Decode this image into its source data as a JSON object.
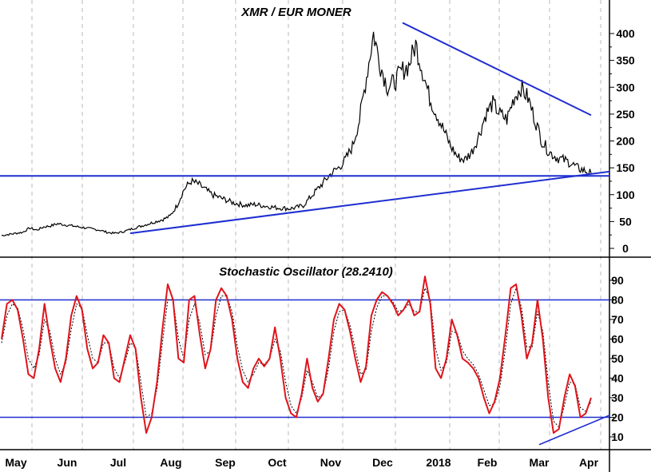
{
  "chart_data": [
    {
      "type": "line",
      "title": "XMR / EUR MONER",
      "yticks": [
        "0",
        "50",
        "100",
        "150",
        "200",
        "250",
        "300",
        "350",
        "400"
      ],
      "ylim": [
        0,
        440
      ],
      "grid": "vertical dashed",
      "months": [
        "May",
        "Jun",
        "Jul",
        "Aug",
        "Sep",
        "Oct",
        "Nov",
        "Dec",
        "2018",
        "Feb",
        "Mar",
        "Apr"
      ],
      "series": [
        {
          "values": [
            24,
            26,
            28,
            30,
            38,
            34,
            40,
            42,
            46,
            44,
            42,
            40,
            38,
            36,
            34,
            30,
            28,
            30,
            34,
            38,
            42,
            46,
            50,
            54,
            60,
            80,
            110,
            125,
            120,
            110,
            100,
            95,
            90,
            85,
            82,
            80,
            82,
            80,
            78,
            76,
            75,
            74,
            76,
            80,
            95,
            110,
            125,
            140,
            150,
            165,
            190,
            240,
            320,
            400,
            340,
            300,
            310,
            330,
            340,
            380,
            330,
            280,
            250,
            220,
            190,
            170,
            165,
            180,
            210,
            250,
            270,
            250,
            240,
            280,
            300,
            280,
            240,
            200,
            180,
            170,
            165,
            160,
            150,
            145,
            140
          ]
        }
      ],
      "trendlines": [
        {
          "label": "resistance",
          "color": "#1f2fd0"
        },
        {
          "label": "support",
          "color": "#1f2fd0"
        },
        {
          "label": "horizontal",
          "color": "#1f2fd0"
        }
      ]
    },
    {
      "type": "line",
      "title": "Stochastic Oscillator (28.2410)",
      "yticks": [
        "10",
        "20",
        "30",
        "40",
        "50",
        "60",
        "70",
        "80",
        "90"
      ],
      "ylim": [
        5,
        97
      ],
      "reference_lines": [
        80,
        20
      ],
      "series": [
        {
          "color": "#e0141c",
          "values": [
            60,
            78,
            80,
            75,
            60,
            42,
            40,
            55,
            78,
            60,
            45,
            38,
            50,
            72,
            82,
            75,
            55,
            45,
            48,
            62,
            58,
            40,
            38,
            50,
            62,
            55,
            30,
            12,
            20,
            38,
            65,
            88,
            80,
            50,
            48,
            80,
            82,
            62,
            45,
            55,
            80,
            86,
            82,
            70,
            50,
            38,
            35,
            45,
            50,
            46,
            50,
            66,
            50,
            30,
            22,
            20,
            32,
            50,
            35,
            28,
            32,
            50,
            70,
            78,
            75,
            64,
            50,
            38,
            46,
            72,
            80,
            84,
            82,
            78,
            72,
            75,
            80,
            72,
            74,
            92,
            78,
            45,
            40,
            50,
            70,
            62,
            50,
            48,
            45,
            40,
            30,
            22,
            28,
            40,
            62,
            86,
            88,
            72,
            50,
            58,
            80,
            60,
            30,
            12,
            14,
            30,
            42,
            36,
            20,
            22,
            30
          ]
        },
        {
          "color": "#000000",
          "values": [
            58,
            72,
            78,
            76,
            65,
            50,
            45,
            52,
            70,
            64,
            50,
            42,
            48,
            65,
            78,
            76,
            62,
            50,
            48,
            58,
            58,
            45,
            40,
            48,
            58,
            56,
            38,
            20,
            22,
            35,
            58,
            80,
            80,
            60,
            50,
            70,
            78,
            68,
            52,
            54,
            72,
            82,
            82,
            74,
            56,
            44,
            38,
            42,
            48,
            47,
            50,
            60,
            54,
            38,
            26,
            22,
            30,
            44,
            38,
            30,
            32,
            45,
            64,
            74,
            75,
            67,
            55,
            42,
            44,
            64,
            76,
            82,
            82,
            79,
            74,
            75,
            78,
            74,
            74,
            86,
            80,
            55,
            44,
            48,
            64,
            63,
            54,
            50,
            47,
            42,
            34,
            26,
            27,
            36,
            55,
            78,
            86,
            76,
            56,
            56,
            74,
            64,
            38,
            18,
            15,
            26,
            38,
            37,
            25,
            23,
            28
          ]
        }
      ]
    }
  ]
}
